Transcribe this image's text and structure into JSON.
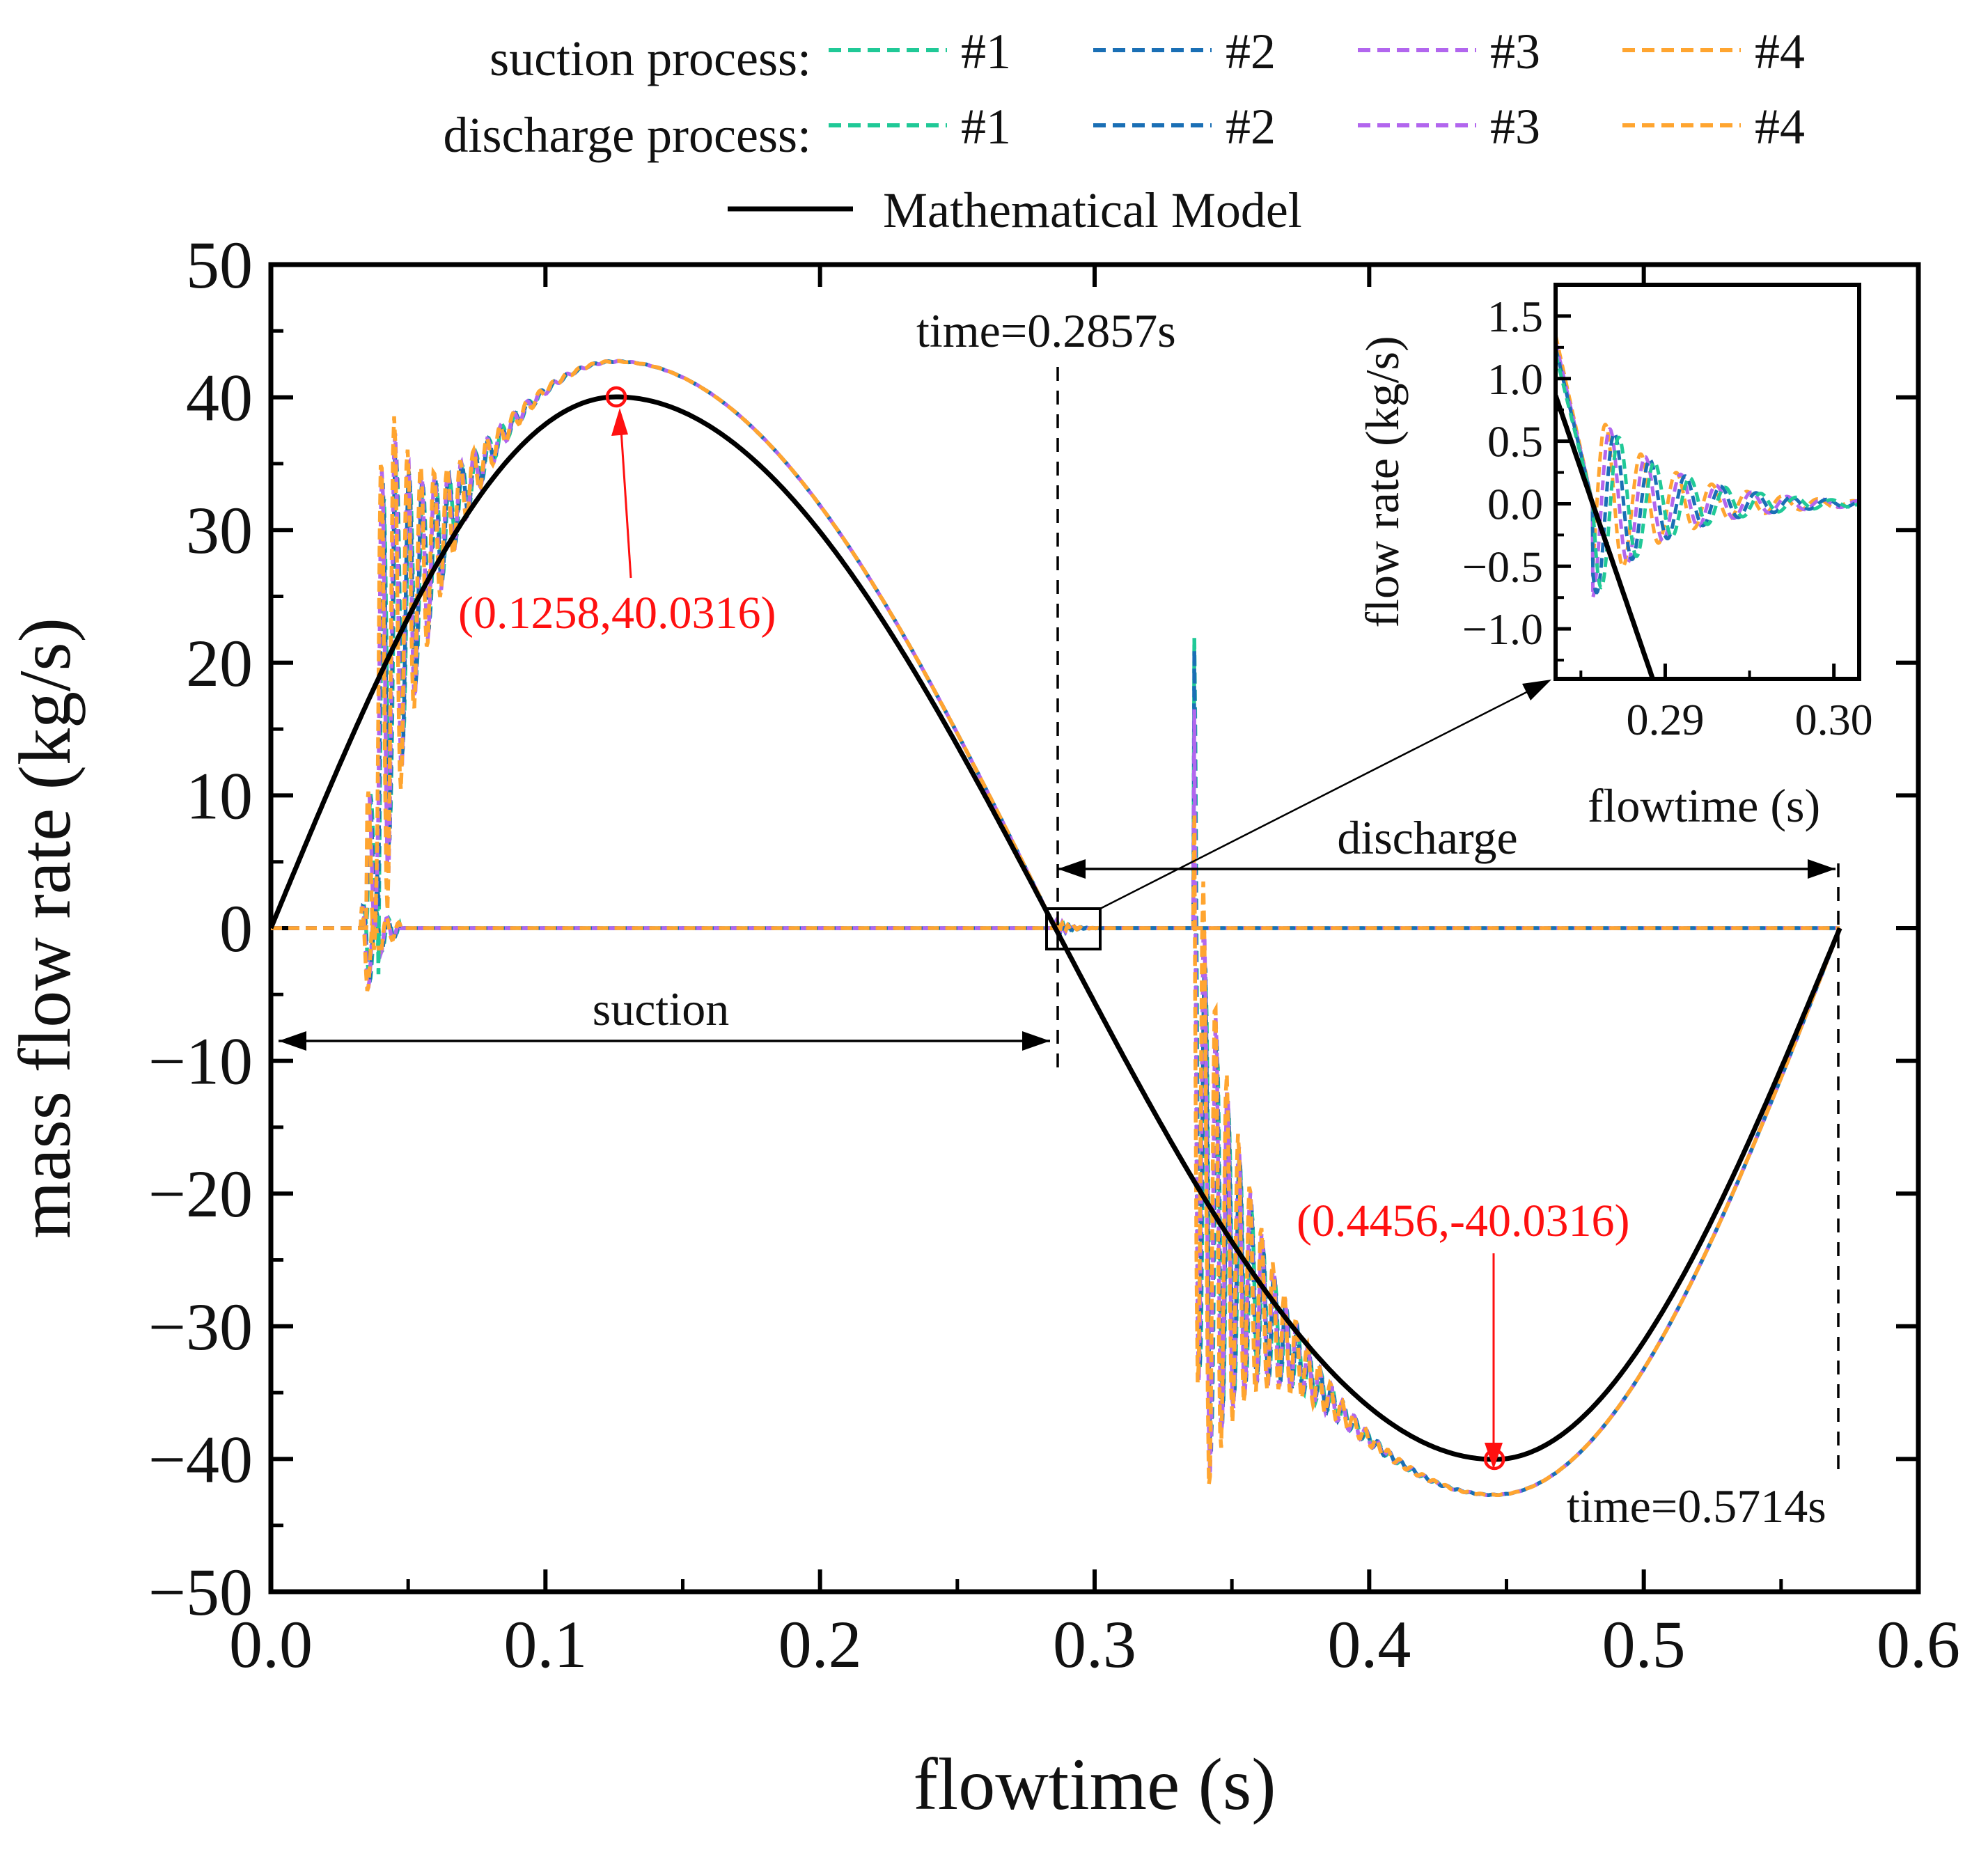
{
  "chart_data": {
    "type": "line",
    "xlabel": "flowtime (s)",
    "ylabel": "mass flow rate (kg/s)",
    "xlim": [
      0.0,
      0.6
    ],
    "ylim": [
      -50,
      50
    ],
    "x_ticks": [
      "0.0",
      "0.1",
      "0.2",
      "0.3",
      "0.4",
      "0.5",
      "0.6"
    ],
    "y_ticks": [
      "50",
      "40",
      "30",
      "20",
      "10",
      "0",
      "−10",
      "−20",
      "−30",
      "−40",
      "−50"
    ],
    "legend": {
      "suction_label": "suction process:",
      "discharge_label": "discharge process:",
      "model_label": "Mathematical Model",
      "cases": [
        "#1",
        "#2",
        "#3",
        "#4"
      ],
      "case_colors": [
        "#20c997",
        "#1a6fb5",
        "#b266ee",
        "#ffa530"
      ],
      "model_color": "#000000"
    },
    "model": {
      "name": "Mathematical Model",
      "period_s": 0.5714,
      "amplitude": 40.0316,
      "peak": [
        0.1258,
        40.0316
      ],
      "trough": [
        0.4456,
        -40.0316
      ]
    },
    "cfd_series": {
      "suction_peak_approx": 42.7,
      "discharge_trough_approx": -42.7,
      "suction_onset_s": 0.035,
      "discharge_onset_s": 0.336
    },
    "annotations": {
      "peak_label": "(0.1258,40.0316)",
      "trough_label": "(0.4456,-40.0316)",
      "time_mid": "time=0.2857s",
      "time_end": "time=0.5714s",
      "suction": "suction",
      "discharge": "discharge"
    },
    "inset": {
      "xlabel": "flowtime (s)",
      "ylabel": "flow rate (kg/s)",
      "xlim": [
        0.2835,
        0.3015
      ],
      "ylim": [
        -1.4,
        1.75
      ],
      "x_ticks": [
        "0.29",
        "0.30"
      ],
      "y_ticks": [
        "1.5",
        "1.0",
        "0.5",
        "0.0",
        "−0.5",
        "−1.0"
      ]
    }
  }
}
